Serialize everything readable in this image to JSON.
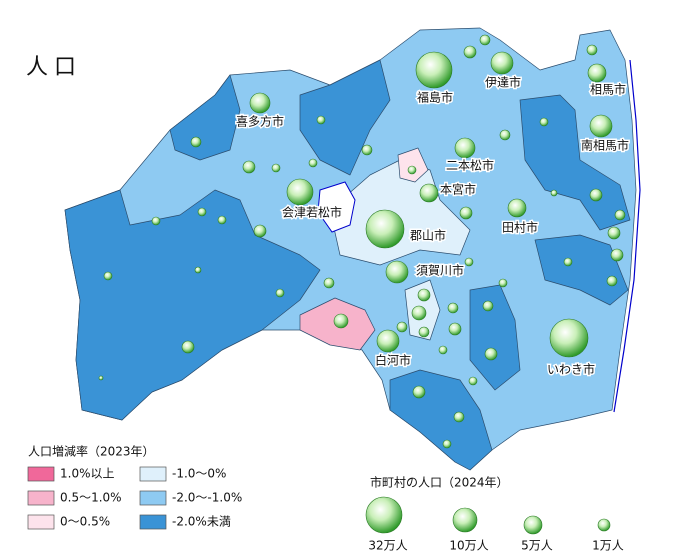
{
  "title": "人口",
  "cities": [
    "福島市",
    "伊達市",
    "相馬市",
    "喜多方市",
    "南相馬市",
    "二本松市",
    "本宮市",
    "会津若松市",
    "郡山市",
    "田村市",
    "須賀川市",
    "白河市",
    "いわき市"
  ],
  "legend_change": {
    "title": "人口増減率（2023年）",
    "items": [
      "1.0%以上",
      "0.5～1.0%",
      "0～0.5%",
      "-1.0～0%",
      "-2.0～-1.0%",
      "-2.0%未満"
    ]
  },
  "legend_population": {
    "title": "市町村の人口（2024年）",
    "items": [
      "32万人",
      "10万人",
      "5万人",
      "1万人"
    ]
  }
}
